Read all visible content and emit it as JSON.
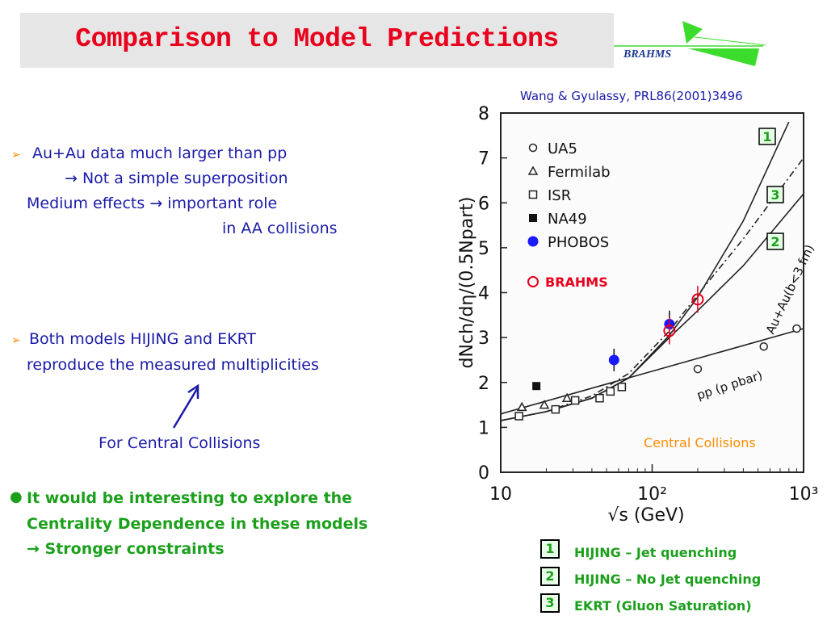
{
  "slide": {
    "title": "Comparison to Model Predictions",
    "logo_text": "BRAHMS",
    "reference": "Wang & Gyulassy, PRL86(2001)3496",
    "bullets": [
      {
        "lines": [
          "Au+Au data much larger than pp",
          "→ Not a simple superposition",
          "Medium effects → important role",
          "in AA collisions"
        ]
      },
      {
        "lines": [
          "Both models HIJING and EKRT",
          "reproduce the measured multiplicities"
        ]
      }
    ],
    "arrow_caption": "For Central Collisions",
    "green_bullet": [
      "It would be interesting to explore the",
      "Centrality Dependence in these models",
      "→ Stronger constraints"
    ],
    "key": [
      {
        "num": "1",
        "label": "HIJING – Jet quenching"
      },
      {
        "num": "2",
        "label": "HIJING – No Jet quenching"
      },
      {
        "num": "3",
        "label": "EKRT (Gluon Saturation)"
      }
    ],
    "colors": {
      "title": "#e8001c",
      "text": "#1a1aa8",
      "green": "#1ca01c",
      "orange": "#ff8c00",
      "phobos": "#1a1aff",
      "brahms": "#e8001c"
    }
  },
  "chart_data": {
    "type": "scatter",
    "xlabel": "√s (GeV)",
    "ylabel": "dNch/dη/(0.5Npart)",
    "xscale": "log",
    "xlim": [
      10,
      1000
    ],
    "ylim": [
      0,
      8
    ],
    "xticks": [
      "10",
      "10²",
      "10³"
    ],
    "yticks": [
      "0",
      "1",
      "2",
      "3",
      "4",
      "5",
      "6",
      "7",
      "8"
    ],
    "legend": [
      "UA5",
      "Fermilab",
      "ISR",
      "NA49",
      "PHOBOS"
    ],
    "brahms_label": "BRAHMS",
    "annotations": {
      "auau": "Au+Au(b<3 fm)",
      "pp": "pp (p pbar)",
      "central": "Central Collisions"
    },
    "series": [
      {
        "name": "UA5",
        "marker": "circle-open",
        "points": [
          [
            200,
            2.3
          ],
          [
            546,
            2.8
          ],
          [
            900,
            3.2
          ]
        ]
      },
      {
        "name": "Fermilab",
        "marker": "triangle-open",
        "points": [
          [
            13.8,
            1.45
          ],
          [
            19.4,
            1.5
          ],
          [
            27.4,
            1.65
          ]
        ]
      },
      {
        "name": "ISR",
        "marker": "square-open",
        "points": [
          [
            13.2,
            1.25
          ],
          [
            23,
            1.4
          ],
          [
            31,
            1.6
          ],
          [
            45,
            1.65
          ],
          [
            53,
            1.8
          ],
          [
            63,
            1.9
          ]
        ]
      },
      {
        "name": "NA49",
        "marker": "square-filled",
        "points": [
          [
            17.2,
            1.92
          ]
        ]
      },
      {
        "name": "PHOBOS",
        "marker": "circle-filled",
        "points": [
          [
            56,
            2.5,
            0.25
          ],
          [
            130,
            3.3,
            0.3
          ]
        ]
      },
      {
        "name": "BRAHMS",
        "marker": "circle-open-red",
        "points": [
          [
            130,
            3.15,
            0.3
          ],
          [
            200,
            3.85,
            0.3
          ]
        ]
      }
    ],
    "curves": [
      {
        "id": "1",
        "style": "solid",
        "x": [
          10,
          20,
          40,
          70,
          130,
          200,
          400,
          800
        ],
        "y": [
          1.15,
          1.35,
          1.65,
          2.1,
          3.05,
          3.9,
          5.6,
          7.8
        ]
      },
      {
        "id": "3",
        "style": "dashdot",
        "x": [
          10,
          20,
          40,
          70,
          130,
          200,
          400,
          1000
        ],
        "y": [
          1.15,
          1.35,
          1.7,
          2.2,
          3.15,
          3.95,
          5.2,
          7.0
        ]
      },
      {
        "id": "2",
        "style": "solid",
        "x": [
          10,
          20,
          40,
          70,
          130,
          200,
          400,
          1000
        ],
        "y": [
          1.15,
          1.35,
          1.65,
          2.1,
          3.0,
          3.6,
          4.6,
          6.2
        ]
      },
      {
        "id": "pp",
        "style": "solid",
        "x": [
          10,
          1000
        ],
        "y": [
          1.3,
          3.2
        ]
      }
    ]
  }
}
